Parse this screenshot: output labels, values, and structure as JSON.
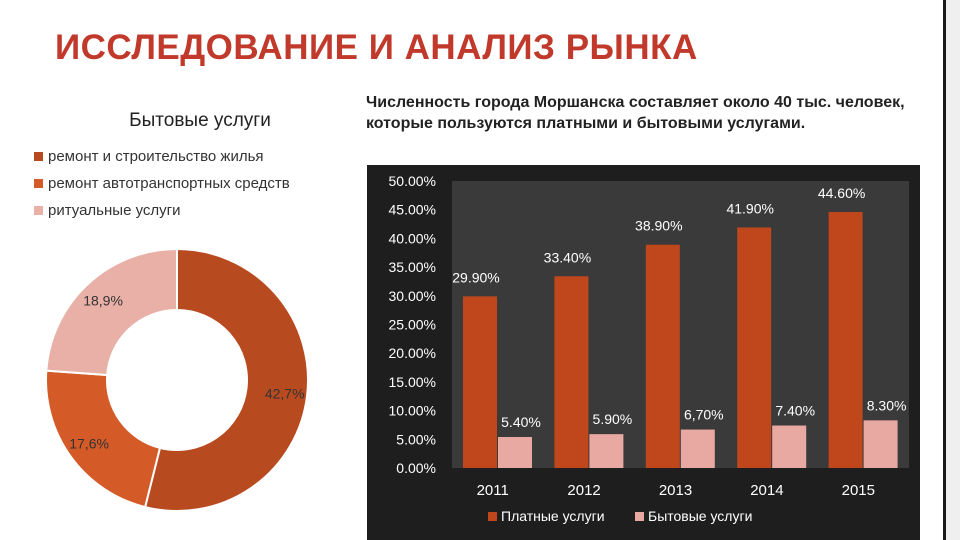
{
  "slide": {
    "title": "ИССЛЕДОВАНИЕ И АНАЛИЗ РЫНКА",
    "description": "Численность города Моршанска  составляет около 40 тыс. человек, которые пользуются платными и бытовыми услугами."
  },
  "colors": {
    "title": "#c0392b",
    "series_paid": "#c0461c",
    "series_household": "#e8a9a2",
    "donut_repair": "#b84a20",
    "donut_auto": "#d45a28",
    "donut_ritual": "#e8b0a6",
    "chart_bg": "#1e1e1e",
    "plot_bg": "#3a3a3a"
  },
  "chart_data": [
    {
      "type": "pie",
      "subtype": "donut",
      "title": "Бытовые услуги",
      "labels": [
        "ремонт и строительство жилья",
        "ремонт автотранспортных средств",
        "ритуальные услуги"
      ],
      "values": [
        42.7,
        17.6,
        18.9
      ],
      "data_labels": [
        "42,7%",
        "17,6%",
        "18,9%"
      ],
      "legend": "top-left"
    },
    {
      "type": "bar",
      "categories": [
        "2011",
        "2012",
        "2013",
        "2014",
        "2015"
      ],
      "series": [
        {
          "name": "Платные услуги",
          "values": [
            29.9,
            33.4,
            38.9,
            41.9,
            44.6
          ],
          "labels": [
            "29.90%",
            "33.40%",
            "38.90%",
            "41.90%",
            "44.60%"
          ]
        },
        {
          "name": "Бытовые услуги",
          "values": [
            5.4,
            5.9,
            6.7,
            7.4,
            8.3
          ],
          "labels": [
            "5.40%",
            "5.90%",
            "6,70%",
            "7.40%",
            "8.30%"
          ]
        }
      ],
      "ylim": [
        0,
        50
      ],
      "yticks": [
        "0.00%",
        "5.00%",
        "10.00%",
        "15.00%",
        "20.00%",
        "25.00%",
        "30.00%",
        "35.00%",
        "40.00%",
        "45.00%",
        "50.00%"
      ],
      "grid": false,
      "legend": "bottom"
    }
  ]
}
